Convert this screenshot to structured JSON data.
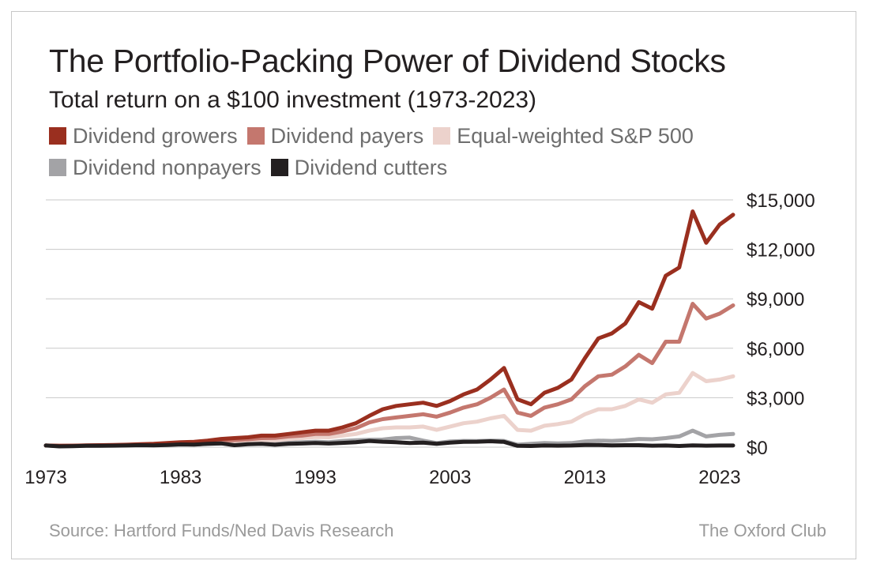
{
  "colors": {
    "background": "#ffffff",
    "grid": "#c8c8c8",
    "text": "#231f20",
    "muted": "#9a9a9a"
  },
  "source": "Source: Hartford Funds/Ned Davis Research",
  "brand": "The Oxford Club",
  "chart_data": {
    "type": "line",
    "title": "The Portfolio-Packing Power of Dividend Stocks",
    "subtitle": "Total return on a $100 investment (1973-2023)",
    "xlabel": "",
    "ylabel": "",
    "xlim": [
      1973,
      2024
    ],
    "ylim": [
      0,
      15000
    ],
    "x_ticks": [
      "1973",
      "1983",
      "1993",
      "2003",
      "2013",
      "2023"
    ],
    "x_tick_values": [
      1973,
      1983,
      1993,
      2003,
      2013,
      2023
    ],
    "y_ticks": [
      "$0",
      "$3,000",
      "$6,000",
      "$9,000",
      "$12,000",
      "$15,000"
    ],
    "y_tick_values": [
      0,
      3000,
      6000,
      9000,
      12000,
      15000
    ],
    "y_axis_side": "right",
    "grid": "horizontal",
    "legend_position": "top-left",
    "series": [
      {
        "name": "Dividend growers",
        "color": "#9a2f1f",
        "points": [
          [
            1973,
            100
          ],
          [
            1974,
            80
          ],
          [
            1975,
            90
          ],
          [
            1976,
            110
          ],
          [
            1977,
            120
          ],
          [
            1978,
            130
          ],
          [
            1979,
            150
          ],
          [
            1980,
            180
          ],
          [
            1981,
            200
          ],
          [
            1982,
            250
          ],
          [
            1983,
            300
          ],
          [
            1984,
            320
          ],
          [
            1985,
            400
          ],
          [
            1986,
            500
          ],
          [
            1987,
            550
          ],
          [
            1988,
            600
          ],
          [
            1989,
            700
          ],
          [
            1990,
            700
          ],
          [
            1991,
            800
          ],
          [
            1992,
            900
          ],
          [
            1993,
            1000
          ],
          [
            1994,
            1000
          ],
          [
            1995,
            1200
          ],
          [
            1996,
            1450
          ],
          [
            1997,
            1900
          ],
          [
            1998,
            2300
          ],
          [
            1999,
            2500
          ],
          [
            2000,
            2600
          ],
          [
            2001,
            2700
          ],
          [
            2002,
            2500
          ],
          [
            2003,
            2800
          ],
          [
            2004,
            3200
          ],
          [
            2005,
            3500
          ],
          [
            2006,
            4100
          ],
          [
            2007,
            4800
          ],
          [
            2008,
            2900
          ],
          [
            2009,
            2600
          ],
          [
            2010,
            3300
          ],
          [
            2011,
            3600
          ],
          [
            2012,
            4100
          ],
          [
            2013,
            5400
          ],
          [
            2014,
            6600
          ],
          [
            2015,
            6900
          ],
          [
            2016,
            7500
          ],
          [
            2017,
            8800
          ],
          [
            2018,
            8400
          ],
          [
            2019,
            10400
          ],
          [
            2020,
            10900
          ],
          [
            2021,
            14300
          ],
          [
            2022,
            12400
          ],
          [
            2023,
            13500
          ],
          [
            2024,
            14100
          ]
        ]
      },
      {
        "name": "Dividend payers",
        "color": "#c4776e",
        "points": [
          [
            1973,
            100
          ],
          [
            1974,
            80
          ],
          [
            1975,
            85
          ],
          [
            1976,
            100
          ],
          [
            1977,
            110
          ],
          [
            1978,
            115
          ],
          [
            1979,
            130
          ],
          [
            1980,
            160
          ],
          [
            1981,
            170
          ],
          [
            1982,
            210
          ],
          [
            1983,
            250
          ],
          [
            1984,
            260
          ],
          [
            1985,
            320
          ],
          [
            1986,
            400
          ],
          [
            1987,
            430
          ],
          [
            1988,
            480
          ],
          [
            1989,
            550
          ],
          [
            1990,
            560
          ],
          [
            1991,
            650
          ],
          [
            1992,
            700
          ],
          [
            1993,
            800
          ],
          [
            1994,
            800
          ],
          [
            1995,
            950
          ],
          [
            1996,
            1150
          ],
          [
            1997,
            1500
          ],
          [
            1998,
            1700
          ],
          [
            1999,
            1800
          ],
          [
            2000,
            1900
          ],
          [
            2001,
            2000
          ],
          [
            2002,
            1850
          ],
          [
            2003,
            2100
          ],
          [
            2004,
            2400
          ],
          [
            2005,
            2600
          ],
          [
            2006,
            3000
          ],
          [
            2007,
            3500
          ],
          [
            2008,
            2100
          ],
          [
            2009,
            1900
          ],
          [
            2010,
            2400
          ],
          [
            2011,
            2600
          ],
          [
            2012,
            2900
          ],
          [
            2013,
            3700
          ],
          [
            2014,
            4300
          ],
          [
            2015,
            4400
          ],
          [
            2016,
            4900
          ],
          [
            2017,
            5600
          ],
          [
            2018,
            5100
          ],
          [
            2019,
            6400
          ],
          [
            2020,
            6400
          ],
          [
            2021,
            8700
          ],
          [
            2022,
            7800
          ],
          [
            2023,
            8100
          ],
          [
            2024,
            8600
          ]
        ]
      },
      {
        "name": "Equal-weighted S&P 500",
        "color": "#ecd2cc",
        "points": [
          [
            1973,
            100
          ],
          [
            1974,
            75
          ],
          [
            1975,
            80
          ],
          [
            1976,
            95
          ],
          [
            1977,
            100
          ],
          [
            1978,
            105
          ],
          [
            1979,
            120
          ],
          [
            1980,
            140
          ],
          [
            1981,
            150
          ],
          [
            1982,
            180
          ],
          [
            1983,
            220
          ],
          [
            1984,
            230
          ],
          [
            1985,
            280
          ],
          [
            1986,
            330
          ],
          [
            1987,
            350
          ],
          [
            1988,
            380
          ],
          [
            1989,
            430
          ],
          [
            1990,
            420
          ],
          [
            1991,
            500
          ],
          [
            1992,
            550
          ],
          [
            1993,
            620
          ],
          [
            1994,
            600
          ],
          [
            1995,
            700
          ],
          [
            1996,
            800
          ],
          [
            1997,
            1000
          ],
          [
            1998,
            1150
          ],
          [
            1999,
            1200
          ],
          [
            2000,
            1200
          ],
          [
            2001,
            1250
          ],
          [
            2002,
            1050
          ],
          [
            2003,
            1250
          ],
          [
            2004,
            1450
          ],
          [
            2005,
            1550
          ],
          [
            2006,
            1750
          ],
          [
            2007,
            1900
          ],
          [
            2008,
            1050
          ],
          [
            2009,
            1000
          ],
          [
            2010,
            1300
          ],
          [
            2011,
            1400
          ],
          [
            2012,
            1550
          ],
          [
            2013,
            2000
          ],
          [
            2014,
            2300
          ],
          [
            2015,
            2300
          ],
          [
            2016,
            2500
          ],
          [
            2017,
            2900
          ],
          [
            2018,
            2700
          ],
          [
            2019,
            3200
          ],
          [
            2020,
            3300
          ],
          [
            2021,
            4500
          ],
          [
            2022,
            4000
          ],
          [
            2023,
            4100
          ],
          [
            2024,
            4300
          ]
        ]
      },
      {
        "name": "Dividend nonpayers",
        "color": "#a3a3a6",
        "points": [
          [
            1973,
            100
          ],
          [
            1974,
            60
          ],
          [
            1975,
            70
          ],
          [
            1976,
            80
          ],
          [
            1977,
            90
          ],
          [
            1978,
            100
          ],
          [
            1979,
            120
          ],
          [
            1980,
            150
          ],
          [
            1981,
            130
          ],
          [
            1982,
            150
          ],
          [
            1983,
            200
          ],
          [
            1984,
            170
          ],
          [
            1985,
            200
          ],
          [
            1986,
            220
          ],
          [
            1987,
            200
          ],
          [
            1988,
            220
          ],
          [
            1989,
            250
          ],
          [
            1990,
            200
          ],
          [
            1991,
            280
          ],
          [
            1992,
            300
          ],
          [
            1993,
            330
          ],
          [
            1994,
            300
          ],
          [
            1995,
            380
          ],
          [
            1996,
            420
          ],
          [
            1997,
            450
          ],
          [
            1998,
            460
          ],
          [
            1999,
            550
          ],
          [
            2000,
            580
          ],
          [
            2001,
            400
          ],
          [
            2002,
            250
          ],
          [
            2003,
            350
          ],
          [
            2004,
            380
          ],
          [
            2005,
            370
          ],
          [
            2006,
            400
          ],
          [
            2007,
            380
          ],
          [
            2008,
            150
          ],
          [
            2009,
            200
          ],
          [
            2010,
            250
          ],
          [
            2011,
            230
          ],
          [
            2012,
            250
          ],
          [
            2013,
            350
          ],
          [
            2014,
            400
          ],
          [
            2015,
            380
          ],
          [
            2016,
            420
          ],
          [
            2017,
            500
          ],
          [
            2018,
            480
          ],
          [
            2019,
            550
          ],
          [
            2020,
            650
          ],
          [
            2021,
            1000
          ],
          [
            2022,
            650
          ],
          [
            2023,
            750
          ],
          [
            2024,
            800
          ]
        ]
      },
      {
        "name": "Dividend cutters",
        "color": "#231f20",
        "points": [
          [
            1973,
            100
          ],
          [
            1974,
            50
          ],
          [
            1975,
            60
          ],
          [
            1976,
            80
          ],
          [
            1977,
            80
          ],
          [
            1978,
            90
          ],
          [
            1979,
            100
          ],
          [
            1980,
            120
          ],
          [
            1981,
            110
          ],
          [
            1982,
            130
          ],
          [
            1983,
            170
          ],
          [
            1984,
            160
          ],
          [
            1985,
            200
          ],
          [
            1986,
            230
          ],
          [
            1987,
            120
          ],
          [
            1988,
            180
          ],
          [
            1989,
            200
          ],
          [
            1990,
            150
          ],
          [
            1991,
            200
          ],
          [
            1992,
            220
          ],
          [
            1993,
            250
          ],
          [
            1994,
            220
          ],
          [
            1995,
            260
          ],
          [
            1996,
            300
          ],
          [
            1997,
            380
          ],
          [
            1998,
            330
          ],
          [
            1999,
            300
          ],
          [
            2000,
            250
          ],
          [
            2001,
            280
          ],
          [
            2002,
            200
          ],
          [
            2003,
            280
          ],
          [
            2004,
            320
          ],
          [
            2005,
            330
          ],
          [
            2006,
            360
          ],
          [
            2007,
            320
          ],
          [
            2008,
            80
          ],
          [
            2009,
            70
          ],
          [
            2010,
            100
          ],
          [
            2011,
            90
          ],
          [
            2012,
            100
          ],
          [
            2013,
            130
          ],
          [
            2014,
            130
          ],
          [
            2015,
            110
          ],
          [
            2016,
            120
          ],
          [
            2017,
            120
          ],
          [
            2018,
            90
          ],
          [
            2019,
            100
          ],
          [
            2020,
            70
          ],
          [
            2021,
            110
          ],
          [
            2022,
            90
          ],
          [
            2023,
            100
          ],
          [
            2024,
            100
          ]
        ]
      }
    ]
  }
}
